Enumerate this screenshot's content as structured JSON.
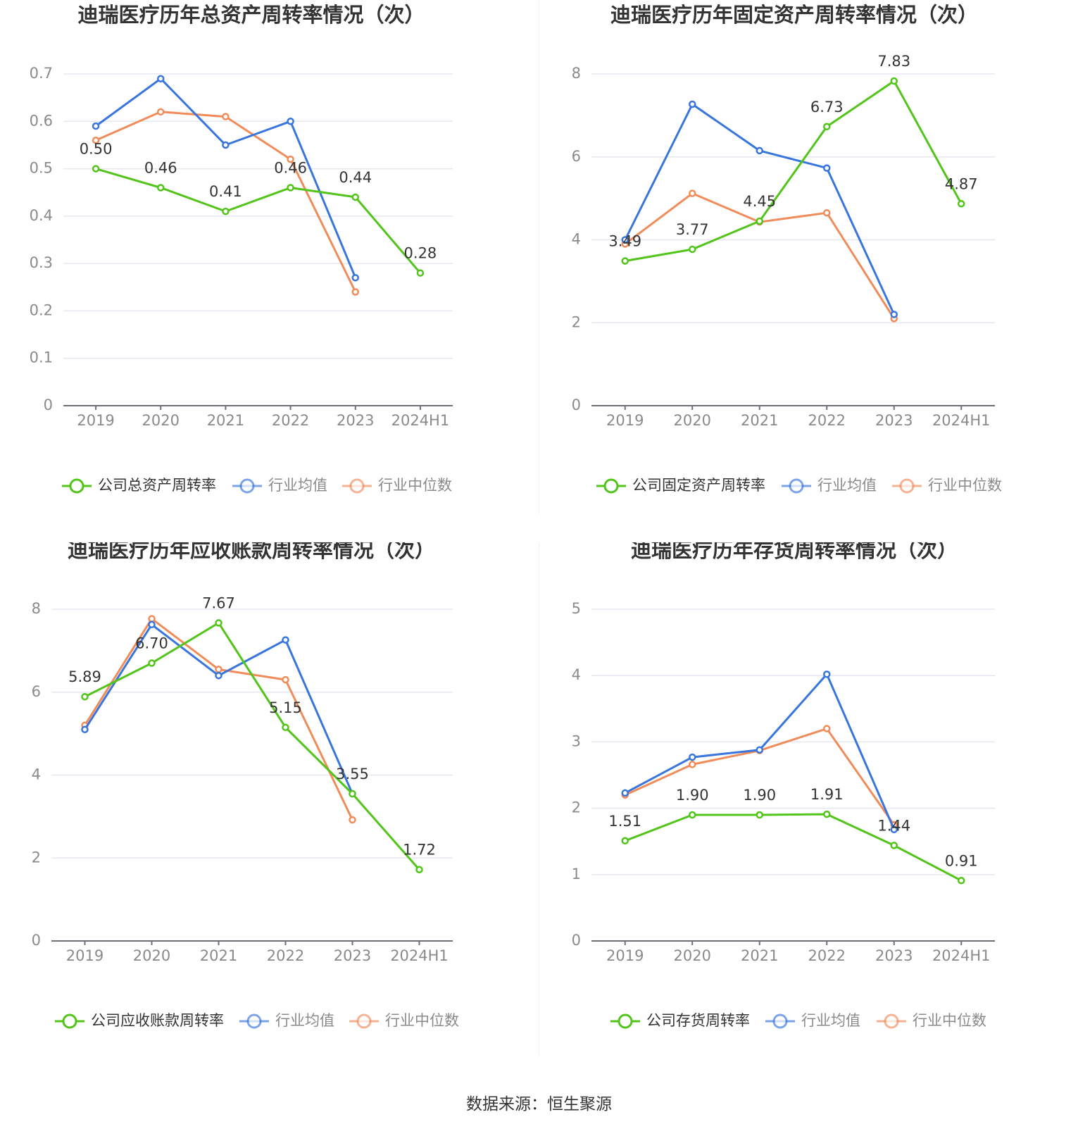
{
  "source_label": "数据来源：恒生聚源",
  "colors": {
    "company": "#52c41a",
    "industry_avg": "#3875dc",
    "industry_median": "#f08c5a",
    "grid": "#e6e8f0",
    "axis": "#6e7079",
    "tick_text": "#8a8a8a",
    "label_text": "#333333",
    "title_text": "#333333"
  },
  "chart_data": [
    {
      "type": "line",
      "title": "迪瑞医疗历年总资产周转率情况（次）",
      "categories": [
        "2019",
        "2020",
        "2021",
        "2022",
        "2023",
        "2024H1"
      ],
      "y_ticks": [
        "0",
        "0.1",
        "0.2",
        "0.3",
        "0.4",
        "0.5",
        "0.6",
        "0.7"
      ],
      "ylim": [
        0,
        0.7
      ],
      "grid": true,
      "legend_position": "bottom",
      "series": [
        {
          "name": "公司总资产周转率",
          "color_key": "company",
          "values": [
            0.5,
            0.46,
            0.41,
            0.46,
            0.44,
            0.28
          ],
          "labels": [
            "0.50",
            "0.46",
            "0.41",
            "0.46",
            "0.44",
            "0.28"
          ]
        },
        {
          "name": "行业均值",
          "color_key": "industry_avg",
          "values": [
            0.59,
            0.69,
            0.55,
            0.6,
            0.27,
            null
          ]
        },
        {
          "name": "行业中位数",
          "color_key": "industry_median",
          "values": [
            0.56,
            0.62,
            0.61,
            0.52,
            0.24,
            null
          ]
        }
      ]
    },
    {
      "type": "line",
      "title": "迪瑞医疗历年固定资产周转率情况（次）",
      "categories": [
        "2019",
        "2020",
        "2021",
        "2022",
        "2023",
        "2024H1"
      ],
      "y_ticks": [
        "0",
        "2",
        "4",
        "6",
        "8"
      ],
      "ylim": [
        0,
        8
      ],
      "grid": true,
      "legend_position": "bottom",
      "series": [
        {
          "name": "公司固定资产周转率",
          "color_key": "company",
          "values": [
            3.49,
            3.77,
            4.45,
            6.73,
            7.83,
            4.87
          ],
          "labels": [
            "3.49",
            "3.77",
            "4.45",
            "6.73",
            "7.83",
            "4.87"
          ]
        },
        {
          "name": "行业均值",
          "color_key": "industry_avg",
          "values": [
            4.0,
            7.27,
            6.15,
            5.73,
            2.2,
            null
          ]
        },
        {
          "name": "行业中位数",
          "color_key": "industry_median",
          "values": [
            3.9,
            5.12,
            4.43,
            4.65,
            2.1,
            null
          ]
        }
      ]
    },
    {
      "type": "line",
      "title": "迪瑞医疗历年应收账款周转率情况（次）",
      "categories": [
        "2019",
        "2020",
        "2021",
        "2022",
        "2023",
        "2024H1"
      ],
      "y_ticks": [
        "0",
        "2",
        "4",
        "6",
        "8"
      ],
      "ylim": [
        0,
        8
      ],
      "grid": true,
      "legend_position": "bottom",
      "series": [
        {
          "name": "公司应收账款周转率",
          "color_key": "company",
          "values": [
            5.89,
            6.7,
            7.67,
            5.15,
            3.55,
            1.72
          ],
          "labels": [
            "5.89",
            "6.70",
            "7.67",
            "5.15",
            "3.55",
            "1.72"
          ]
        },
        {
          "name": "行业均值",
          "color_key": "industry_avg",
          "values": [
            5.1,
            7.63,
            6.4,
            7.26,
            3.55,
            null
          ]
        },
        {
          "name": "行业中位数",
          "color_key": "industry_median",
          "values": [
            5.2,
            7.77,
            6.55,
            6.3,
            2.92,
            null
          ]
        }
      ]
    },
    {
      "type": "line",
      "title": "迪瑞医疗历年存货周转率情况（次）",
      "categories": [
        "2019",
        "2020",
        "2021",
        "2022",
        "2023",
        "2024H1"
      ],
      "y_ticks": [
        "0",
        "1",
        "2",
        "3",
        "4",
        "5"
      ],
      "ylim": [
        0,
        5
      ],
      "grid": true,
      "legend_position": "bottom",
      "series": [
        {
          "name": "公司存货周转率",
          "color_key": "company",
          "values": [
            1.51,
            1.9,
            1.9,
            1.91,
            1.44,
            0.91
          ],
          "labels": [
            "1.51",
            "1.90",
            "1.90",
            "1.91",
            "1.44",
            "0.91"
          ]
        },
        {
          "name": "行业均值",
          "color_key": "industry_avg",
          "values": [
            2.23,
            2.77,
            2.88,
            4.02,
            1.68,
            null
          ]
        },
        {
          "name": "行业中位数",
          "color_key": "industry_median",
          "values": [
            2.2,
            2.66,
            2.87,
            3.2,
            1.75,
            null
          ]
        }
      ]
    }
  ]
}
